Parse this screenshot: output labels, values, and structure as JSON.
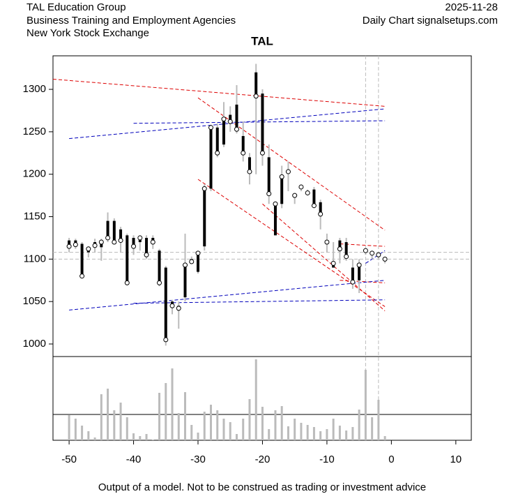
{
  "chart_data": {
    "type": "candlestick",
    "title": "TAL",
    "header_left": [
      "TAL Education Group",
      "Business Training and Employment Agencies",
      "New York Stock Exchange"
    ],
    "header_right": [
      "2025-11-28",
      "Daily Chart signalsetups.com"
    ],
    "note": "Output of a model. Not to be construed as trading or investment advice",
    "x": [
      -50,
      -49,
      -48,
      -47,
      -46,
      -45,
      -44,
      -43,
      -42,
      -41,
      -40,
      -39,
      -38,
      -37,
      -36,
      -35,
      -34,
      -33,
      -32,
      -31,
      -30,
      -29,
      -28,
      -27,
      -26,
      -25,
      -24,
      -23,
      -22,
      -21,
      -20,
      -19,
      -18,
      -17,
      -16,
      -15,
      -14,
      -13,
      -12,
      -11,
      -10,
      -9,
      -8,
      -7,
      -6,
      -5,
      -4,
      -3,
      -2,
      -1
    ],
    "open": [
      1122,
      1122,
      1118,
      1108,
      1120,
      1114,
      1145,
      1145,
      1135,
      1128,
      1125,
      1120,
      1125,
      1125,
      1110,
      1090,
      1050,
      1045,
      1055,
      1100,
      1085,
      1115,
      1183,
      1255,
      1235,
      1270,
      1282,
      1245,
      1220,
      1320,
      1295,
      1220,
      1128,
      1165,
      1205,
      1175,
      1183,
      1180,
      1182,
      1167,
      1120,
      1090,
      1122,
      1120,
      1090,
      1075,
      1110,
      1107,
      1105,
      1100
    ],
    "high": [
      1125,
      1124,
      1120,
      1115,
      1124,
      1124,
      1155,
      1148,
      1138,
      1130,
      1128,
      1128,
      1128,
      1128,
      1112,
      1092,
      1052,
      1050,
      1130,
      1103,
      1110,
      1188,
      1258,
      1260,
      1285,
      1280,
      1305,
      1262,
      1225,
      1330,
      1300,
      1235,
      1168,
      1210,
      1215,
      1178,
      1188,
      1182,
      1185,
      1170,
      1130,
      1120,
      1125,
      1125,
      1100,
      1100,
      1112,
      1110,
      1108,
      1103
    ],
    "low": [
      1108,
      1112,
      1078,
      1102,
      1108,
      1098,
      1120,
      1118,
      1108,
      1070,
      1105,
      1110,
      1100,
      1112,
      1068,
      998,
      1035,
      1018,
      1050,
      1095,
      1083,
      1110,
      1180,
      1220,
      1232,
      1250,
      1248,
      1215,
      1188,
      1200,
      1210,
      1165,
      1128,
      1160,
      1180,
      1165,
      1180,
      1175,
      1160,
      1135,
      1108,
      1090,
      1095,
      1098,
      1065,
      1060,
      1105,
      1100,
      1100,
      1095
    ],
    "close": [
      1115,
      1117,
      1080,
      1112,
      1116,
      1120,
      1125,
      1120,
      1122,
      1072,
      1115,
      1125,
      1105,
      1120,
      1072,
      1005,
      1045,
      1042,
      1093,
      1097,
      1107,
      1183,
      1255,
      1225,
      1265,
      1262,
      1253,
      1225,
      1203,
      1292,
      1225,
      1177,
      1165,
      1197,
      1203,
      1175,
      1185,
      1178,
      1163,
      1153,
      1120,
      1095,
      1112,
      1103,
      1073,
      1093,
      1110,
      1107,
      1105,
      1100
    ],
    "volume": [
      36,
      31,
      21,
      13,
      4,
      66,
      74,
      43,
      54,
      33,
      10,
      6,
      9,
      1,
      68,
      82,
      103,
      39,
      69,
      22,
      11,
      41,
      51,
      43,
      31,
      26,
      9,
      31,
      59,
      116,
      48,
      16,
      43,
      49,
      20,
      31,
      25,
      22,
      19,
      13,
      16,
      31,
      21,
      14,
      19,
      44,
      101,
      33,
      58,
      6
    ],
    "xlim": [
      -52.5,
      12.4
    ],
    "ylim": [
      985.2,
      1339.5
    ],
    "volume_ylim": [
      0,
      120
    ],
    "xticks": [
      -50,
      -40,
      -30,
      -20,
      -10,
      0,
      10
    ],
    "yticks": [
      1000,
      1050,
      1100,
      1150,
      1200,
      1250,
      1300
    ],
    "candle_color": "#000000",
    "wick_color": "#bbbbbb",
    "volume_color": "#bbbbbb",
    "lines": [
      {
        "color": "#dd0000",
        "x": [
          -52.5,
          -1
        ],
        "y": [
          1312,
          1280
        ]
      },
      {
        "color": "#dd0000",
        "x": [
          -30,
          -1
        ],
        "y": [
          1290,
          1134
        ]
      },
      {
        "color": "#dd0000",
        "x": [
          -30,
          -1
        ],
        "y": [
          1194,
          1044
        ]
      },
      {
        "color": "#dd0000",
        "x": [
          -20,
          -1
        ],
        "y": [
          1165,
          1039
        ]
      },
      {
        "color": "#dd0000",
        "x": [
          -8,
          -1
        ],
        "y": [
          1118,
          1115
        ]
      },
      {
        "color": "#dd0000",
        "x": [
          -8,
          -1
        ],
        "y": [
          1075,
          1072
        ]
      },
      {
        "color": "#0000bb",
        "x": [
          -50,
          -1
        ],
        "y": [
          1242,
          1277
        ]
      },
      {
        "color": "#0000bb",
        "x": [
          -40,
          -1
        ],
        "y": [
          1260,
          1263
        ]
      },
      {
        "color": "#0000bb",
        "x": [
          -50,
          -1
        ],
        "y": [
          1040,
          1075
        ]
      },
      {
        "color": "#0000bb",
        "x": [
          -40,
          -1
        ],
        "y": [
          1048,
          1052
        ]
      },
      {
        "color": "#0000bb",
        "x": [
          -4,
          -1
        ],
        "y": [
          1095,
          1110
        ]
      }
    ],
    "vlines": [
      -4,
      -2
    ],
    "hlines": [
      1108,
      1100
    ],
    "ref_color": "#bbbbbb"
  }
}
